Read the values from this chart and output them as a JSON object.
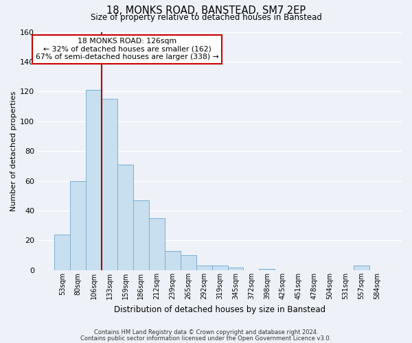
{
  "title": "18, MONKS ROAD, BANSTEAD, SM7 2EP",
  "subtitle": "Size of property relative to detached houses in Banstead",
  "xlabel": "Distribution of detached houses by size in Banstead",
  "ylabel": "Number of detached properties",
  "bin_labels": [
    "53sqm",
    "80sqm",
    "106sqm",
    "133sqm",
    "159sqm",
    "186sqm",
    "212sqm",
    "239sqm",
    "265sqm",
    "292sqm",
    "319sqm",
    "345sqm",
    "372sqm",
    "398sqm",
    "425sqm",
    "451sqm",
    "478sqm",
    "504sqm",
    "531sqm",
    "557sqm",
    "584sqm"
  ],
  "bar_heights": [
    24,
    60,
    121,
    115,
    71,
    47,
    35,
    13,
    10,
    3,
    3,
    2,
    0,
    1,
    0,
    0,
    0,
    0,
    0,
    3,
    0
  ],
  "bar_color": "#c8dff0",
  "bar_edge_color": "#7aafd4",
  "property_line_bin": 2,
  "property_line_color": "#aa0000",
  "annotation_title": "18 MONKS ROAD: 126sqm",
  "annotation_line1": "← 32% of detached houses are smaller (162)",
  "annotation_line2": "67% of semi-detached houses are larger (338) →",
  "annotation_box_color": "#ffffff",
  "annotation_box_edge_color": "#cc0000",
  "ylim": [
    0,
    160
  ],
  "yticks": [
    0,
    20,
    40,
    60,
    80,
    100,
    120,
    140,
    160
  ],
  "footnote1": "Contains HM Land Registry data © Crown copyright and database right 2024.",
  "footnote2": "Contains public sector information licensed under the Open Government Licence v3.0.",
  "bg_color": "#eef2f8",
  "grid_color": "#ffffff",
  "title_fontsize": 10.5,
  "subtitle_fontsize": 8.5,
  "xlabel_fontsize": 8.5,
  "ylabel_fontsize": 8,
  "ytick_fontsize": 8,
  "xtick_fontsize": 7,
  "annot_fontsize": 7.8,
  "footnote_fontsize": 6
}
